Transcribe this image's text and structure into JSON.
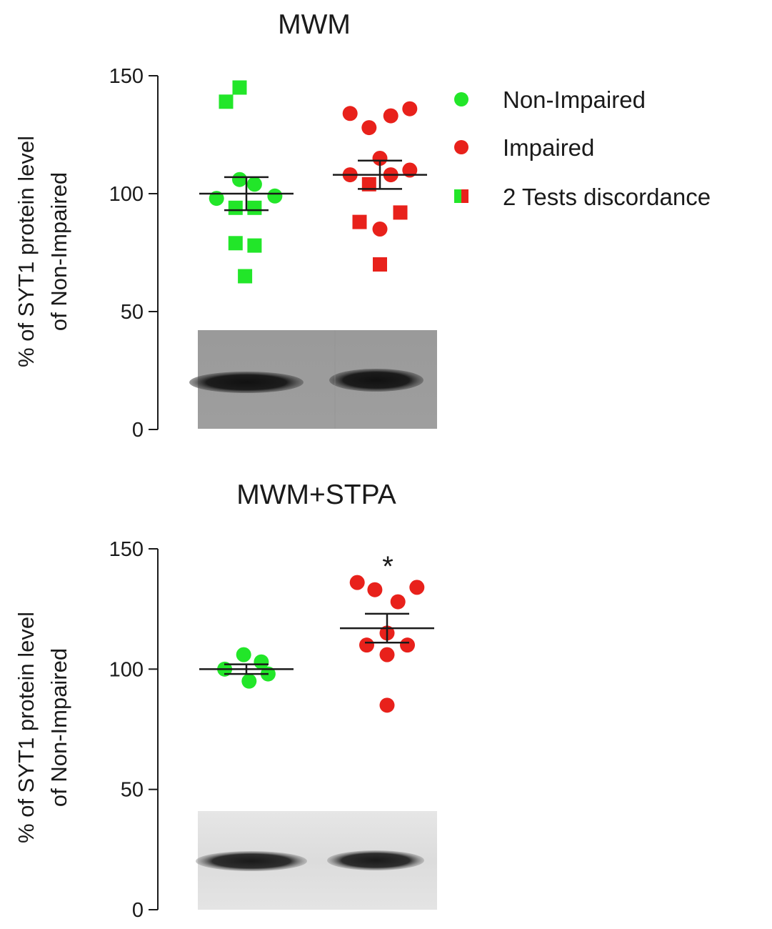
{
  "legend": {
    "items": [
      {
        "label": "Non-Impaired",
        "marker": "circle",
        "color": "#22e629"
      },
      {
        "label": "Impaired",
        "marker": "circle",
        "color": "#e8211b"
      },
      {
        "label": "2 Tests discordance",
        "marker": "split-square",
        "colors": [
          "#22e629",
          "#e8211b"
        ]
      }
    ]
  },
  "chart_data": [
    {
      "type": "scatter",
      "title": "MWM",
      "ylabel_line1": "% of SYT1 protein level",
      "ylabel_line2": "of Non-Impaired",
      "ylim": [
        0,
        150
      ],
      "yticks": [
        0,
        50,
        100,
        150
      ],
      "annotation": "",
      "groups": [
        {
          "name": "Non-Impaired",
          "color": "#22e629",
          "mean": 100,
          "sem": 7,
          "points": [
            {
              "x_offset": -0.15,
              "y": 139,
              "marker": "square"
            },
            {
              "x_offset": -0.05,
              "y": 145,
              "marker": "square"
            },
            {
              "x_offset": -0.05,
              "y": 106,
              "marker": "circle"
            },
            {
              "x_offset": 0.06,
              "y": 104,
              "marker": "circle"
            },
            {
              "x_offset": 0.21,
              "y": 99,
              "marker": "circle"
            },
            {
              "x_offset": -0.22,
              "y": 98,
              "marker": "circle"
            },
            {
              "x_offset": -0.08,
              "y": 94,
              "marker": "square"
            },
            {
              "x_offset": 0.06,
              "y": 94,
              "marker": "square"
            },
            {
              "x_offset": -0.08,
              "y": 79,
              "marker": "square"
            },
            {
              "x_offset": 0.06,
              "y": 78,
              "marker": "square"
            },
            {
              "x_offset": -0.01,
              "y": 65,
              "marker": "square"
            }
          ]
        },
        {
          "name": "Impaired",
          "color": "#e8211b",
          "mean": 108,
          "sem": 6,
          "points": [
            {
              "x_offset": -0.22,
              "y": 134,
              "marker": "circle"
            },
            {
              "x_offset": 0.08,
              "y": 133,
              "marker": "circle"
            },
            {
              "x_offset": 0.22,
              "y": 136,
              "marker": "circle"
            },
            {
              "x_offset": -0.08,
              "y": 128,
              "marker": "circle"
            },
            {
              "x_offset": 0.0,
              "y": 115,
              "marker": "circle"
            },
            {
              "x_offset": -0.22,
              "y": 108,
              "marker": "circle"
            },
            {
              "x_offset": 0.08,
              "y": 108,
              "marker": "circle"
            },
            {
              "x_offset": 0.22,
              "y": 110,
              "marker": "circle"
            },
            {
              "x_offset": -0.08,
              "y": 104,
              "marker": "square"
            },
            {
              "x_offset": -0.15,
              "y": 88,
              "marker": "square"
            },
            {
              "x_offset": 0.15,
              "y": 92,
              "marker": "square"
            },
            {
              "x_offset": 0.0,
              "y": 85,
              "marker": "circle"
            },
            {
              "x_offset": 0.0,
              "y": 70,
              "marker": "square"
            }
          ]
        }
      ]
    },
    {
      "type": "scatter",
      "title": "MWM+STPA",
      "ylabel_line1": "% of SYT1 protein level",
      "ylabel_line2": "of Non-Impaired",
      "ylim": [
        0,
        150
      ],
      "yticks": [
        0,
        50,
        100,
        150
      ],
      "annotation": "*",
      "groups": [
        {
          "name": "Non-Impaired",
          "color": "#22e629",
          "mean": 100,
          "sem": 2,
          "points": [
            {
              "x_offset": -0.02,
              "y": 106,
              "marker": "circle"
            },
            {
              "x_offset": 0.11,
              "y": 103,
              "marker": "circle"
            },
            {
              "x_offset": -0.16,
              "y": 100,
              "marker": "circle"
            },
            {
              "x_offset": 0.16,
              "y": 98,
              "marker": "circle"
            },
            {
              "x_offset": 0.02,
              "y": 95,
              "marker": "circle"
            }
          ]
        },
        {
          "name": "Impaired",
          "color": "#e8211b",
          "mean": 117,
          "sem": 6,
          "points": [
            {
              "x_offset": -0.22,
              "y": 136,
              "marker": "circle"
            },
            {
              "x_offset": -0.09,
              "y": 133,
              "marker": "circle"
            },
            {
              "x_offset": 0.08,
              "y": 128,
              "marker": "circle"
            },
            {
              "x_offset": 0.22,
              "y": 134,
              "marker": "circle"
            },
            {
              "x_offset": 0.0,
              "y": 115,
              "marker": "circle"
            },
            {
              "x_offset": -0.15,
              "y": 110,
              "marker": "circle"
            },
            {
              "x_offset": 0.15,
              "y": 110,
              "marker": "circle"
            },
            {
              "x_offset": 0.0,
              "y": 106,
              "marker": "circle"
            },
            {
              "x_offset": 0.0,
              "y": 85,
              "marker": "circle"
            }
          ]
        }
      ]
    }
  ]
}
